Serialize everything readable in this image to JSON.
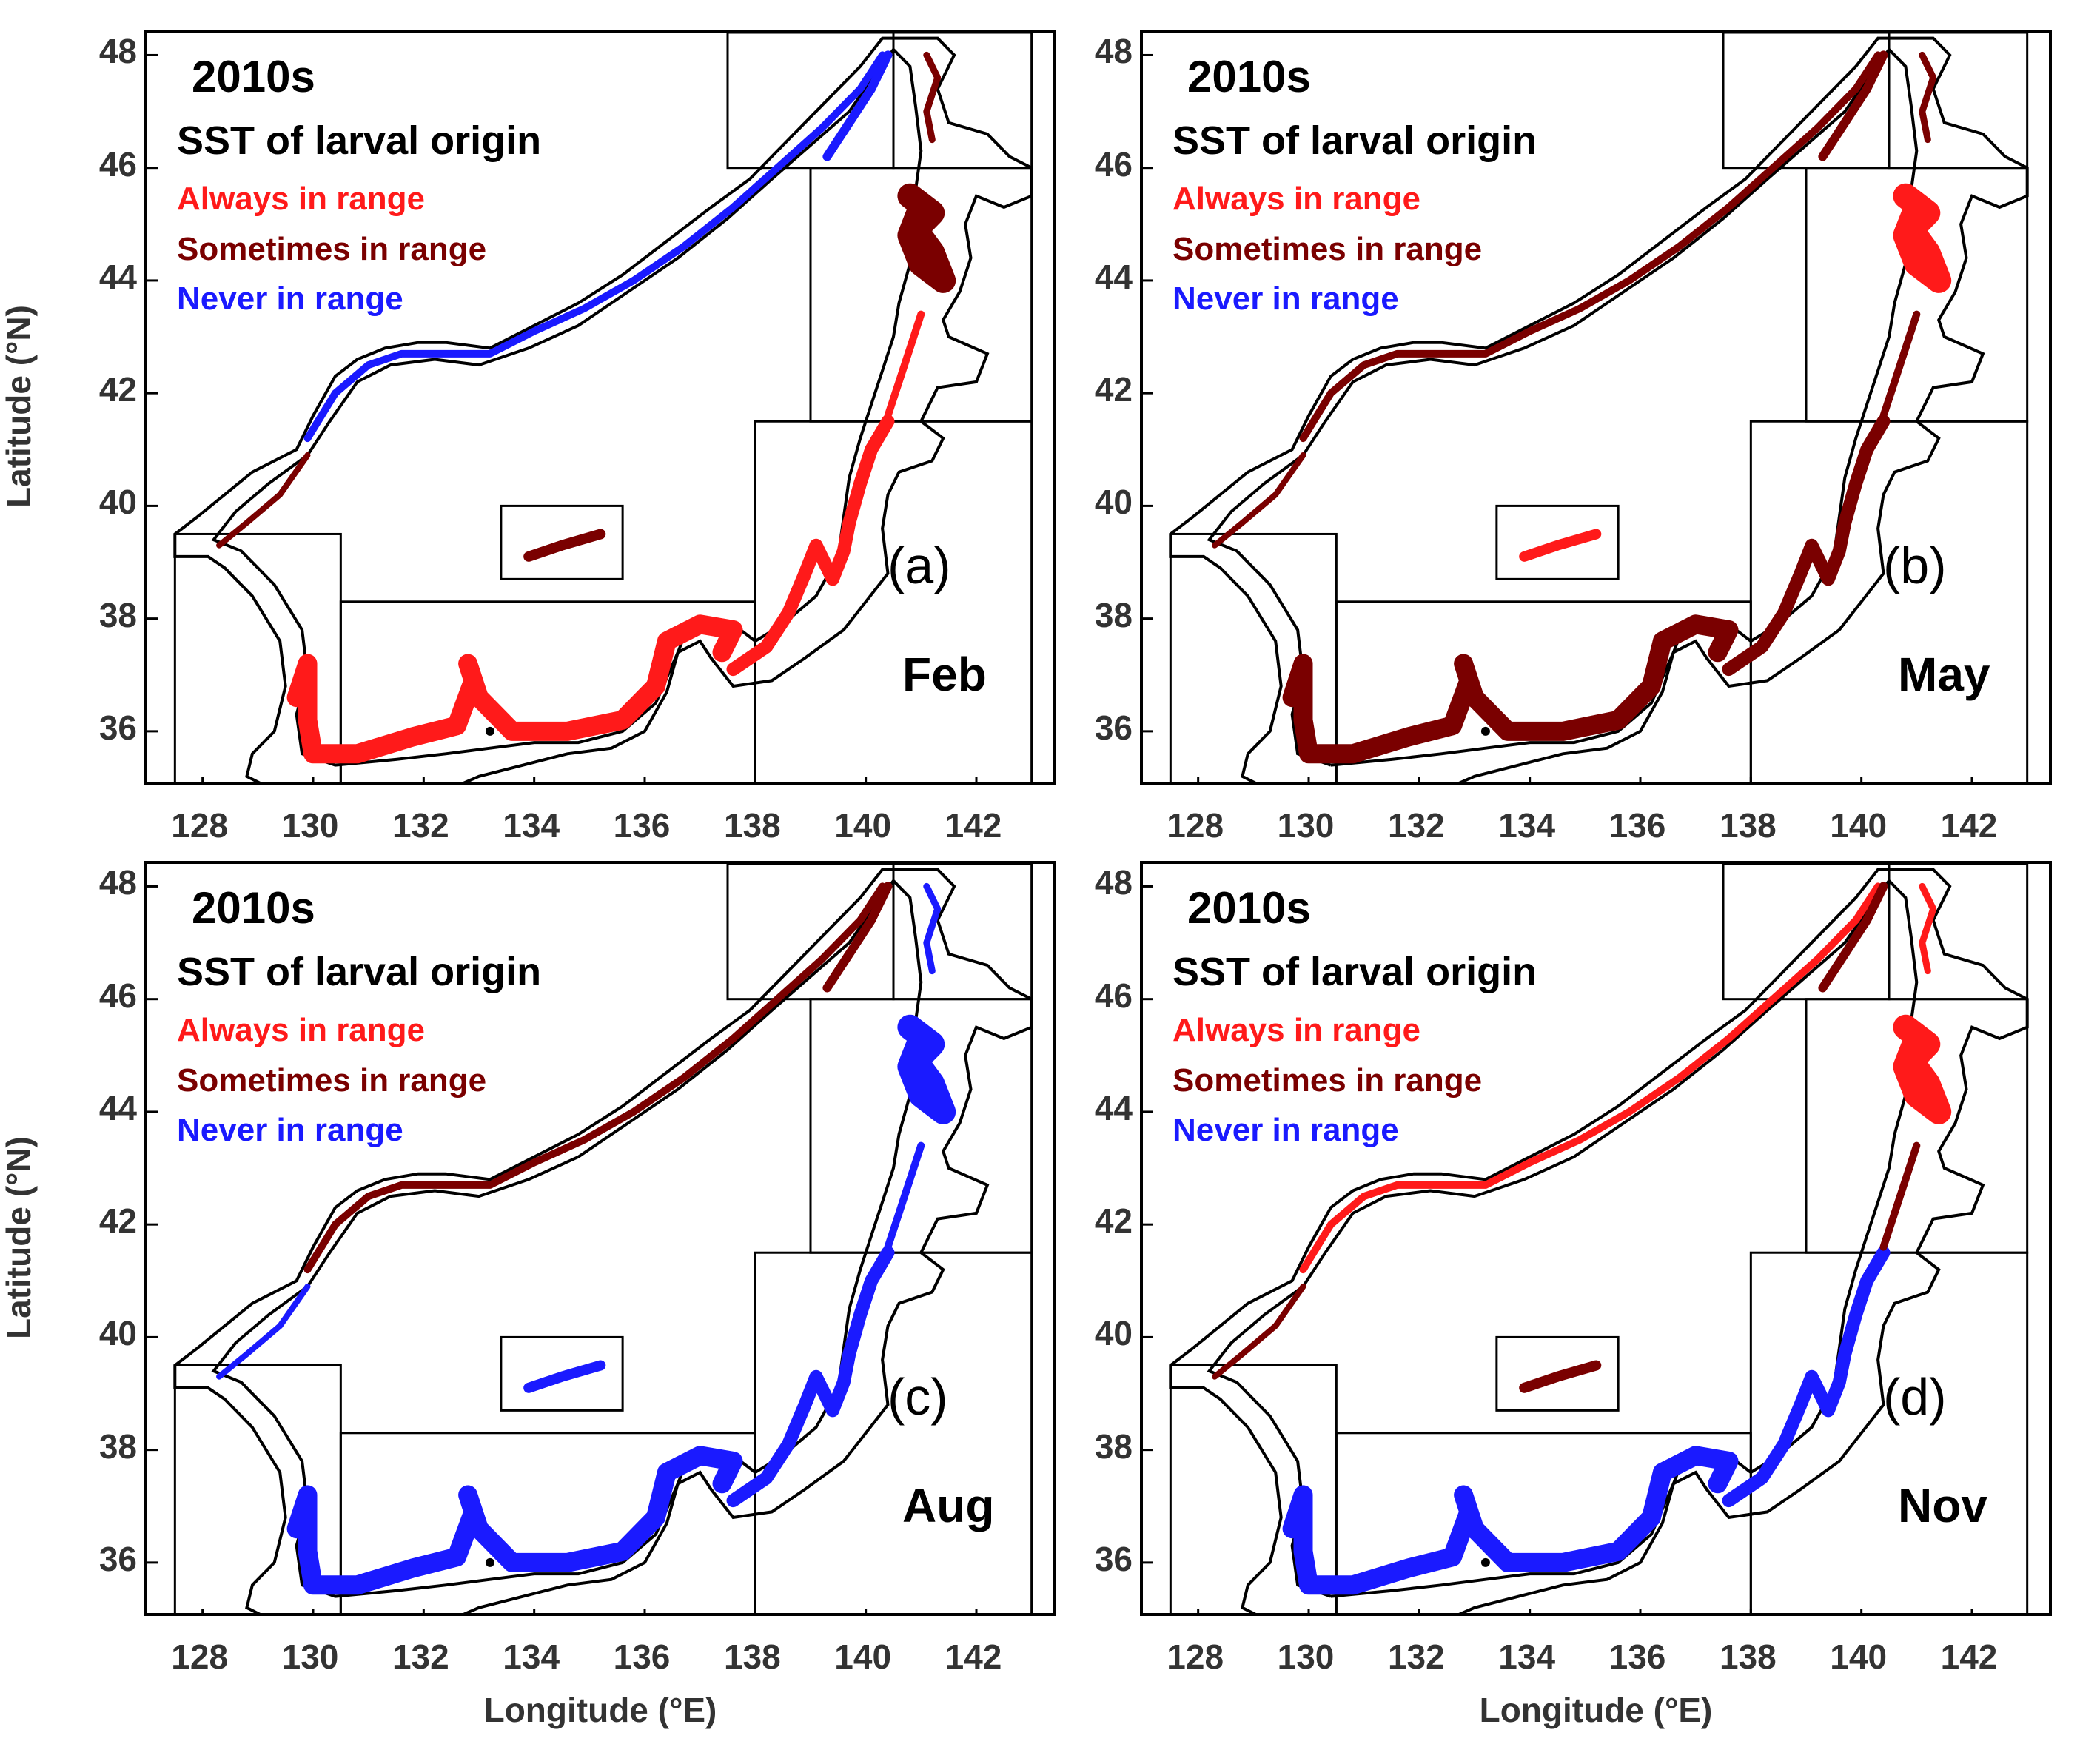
{
  "colors": {
    "always": "#ff1a1a",
    "sometimes": "#7a0000",
    "never": "#1a1aff",
    "coast": "#000000"
  },
  "axes": {
    "xlabel": "Longitude (°E)",
    "ylabel": "Latitude (°N)",
    "xticks": [
      "128",
      "130",
      "132",
      "134",
      "136",
      "138",
      "140",
      "142"
    ],
    "yticks": [
      "48",
      "46",
      "44",
      "42",
      "40",
      "38",
      "36"
    ]
  },
  "legend": {
    "always": "Always in range",
    "sometimes": "Sometimes in range",
    "never": "Never in range"
  },
  "panels": [
    {
      "decade": "2010s",
      "subtitle": "SST of larval origin",
      "tag": "(a)",
      "month": "Feb",
      "region_status": {
        "northwest_coast": "never",
        "korea_west_coast": "sometimes",
        "korea_south_coast": "always",
        "japan_south_coast": "always",
        "honshu_north": "always",
        "hokkaido": "sometimes",
        "sakhalin_west": "never",
        "sakhalin_east": "sometimes",
        "oki_islands": "sometimes"
      }
    },
    {
      "decade": "2010s",
      "subtitle": "SST of larval origin",
      "tag": "(b)",
      "month": "May",
      "region_status": {
        "northwest_coast": "sometimes",
        "korea_west_coast": "sometimes",
        "korea_south_coast": "sometimes",
        "japan_south_coast": "sometimes",
        "honshu_north": "sometimes",
        "hokkaido": "always",
        "sakhalin_west": "sometimes",
        "sakhalin_east": "sometimes",
        "oki_islands": "always"
      }
    },
    {
      "decade": "2010s",
      "subtitle": "SST of larval origin",
      "tag": "(c)",
      "month": "Aug",
      "region_status": {
        "northwest_coast": "sometimes",
        "korea_west_coast": "never",
        "korea_south_coast": "never",
        "japan_south_coast": "never",
        "honshu_north": "never",
        "hokkaido": "never",
        "sakhalin_west": "sometimes",
        "sakhalin_east": "never",
        "oki_islands": "never"
      }
    },
    {
      "decade": "2010s",
      "subtitle": "SST of larval origin",
      "tag": "(d)",
      "month": "Nov",
      "region_status": {
        "northwest_coast": "always",
        "korea_west_coast": "sometimes",
        "korea_south_coast": "never",
        "japan_south_coast": "never",
        "honshu_north": "sometimes",
        "hokkaido": "always",
        "sakhalin_west": "sometimes",
        "sakhalin_east": "always",
        "oki_islands": "sometimes"
      }
    }
  ]
}
